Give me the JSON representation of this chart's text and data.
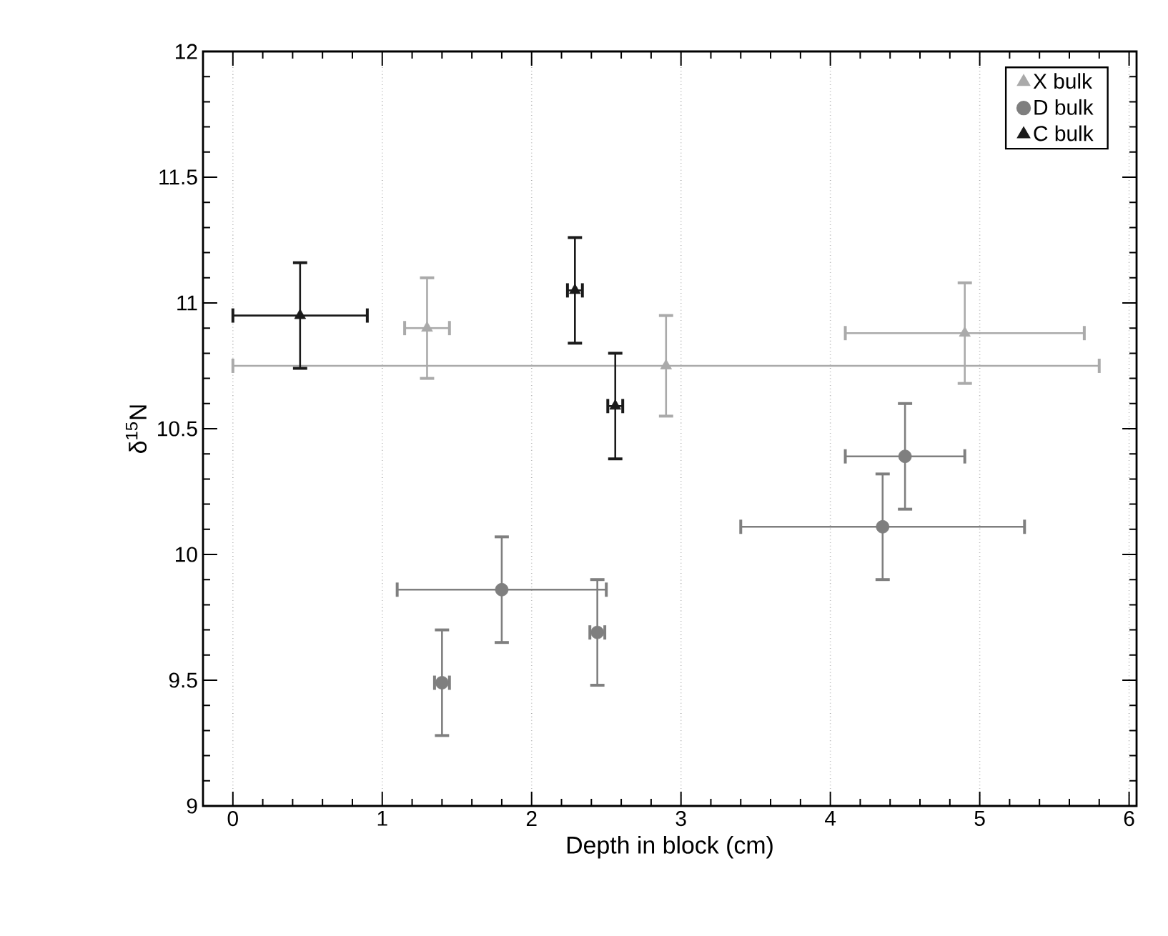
{
  "chart_data": {
    "type": "scatter",
    "xlabel": "Depth in block (cm)",
    "ylabel": "δ$^{15}$N",
    "xlim": [
      -0.2,
      6.05
    ],
    "ylim": [
      9,
      12
    ],
    "xticks": [
      0,
      1,
      2,
      3,
      4,
      5,
      6
    ],
    "yticks": [
      9,
      9.5,
      10,
      10.5,
      11,
      11.5,
      12
    ],
    "grid": "x",
    "legend": "top right",
    "series": [
      {
        "name": "X bulk",
        "color": "#aaaaaa",
        "marker": "triangle",
        "x": [
          1.3,
          2.9,
          4.9
        ],
        "values": [
          10.9,
          10.75,
          10.88
        ],
        "xerrors": [
          0.15,
          2.9,
          0.8
        ],
        "errors": [
          0.2,
          0.2,
          0.2
        ]
      },
      {
        "name": "D bulk",
        "color": "#7f7f7f",
        "marker": "circle",
        "x": [
          1.8,
          4.35,
          4.5,
          1.4,
          2.44
        ],
        "values": [
          9.86,
          10.11,
          10.39,
          9.49,
          9.69
        ],
        "xerrors": [
          0.7,
          0.95,
          0.4,
          0.05,
          0.05
        ],
        "errors": [
          0.21,
          0.21,
          0.21,
          0.21,
          0.21
        ]
      },
      {
        "name": "C bulk",
        "color": "#1a1a1a",
        "marker": "triangle",
        "x": [
          0.45,
          2.29,
          2.56
        ],
        "values": [
          10.95,
          11.05,
          10.59
        ],
        "xerrors": [
          0.45,
          0.05,
          0.05
        ],
        "errors": [
          0.21,
          0.21,
          0.21
        ]
      }
    ]
  }
}
